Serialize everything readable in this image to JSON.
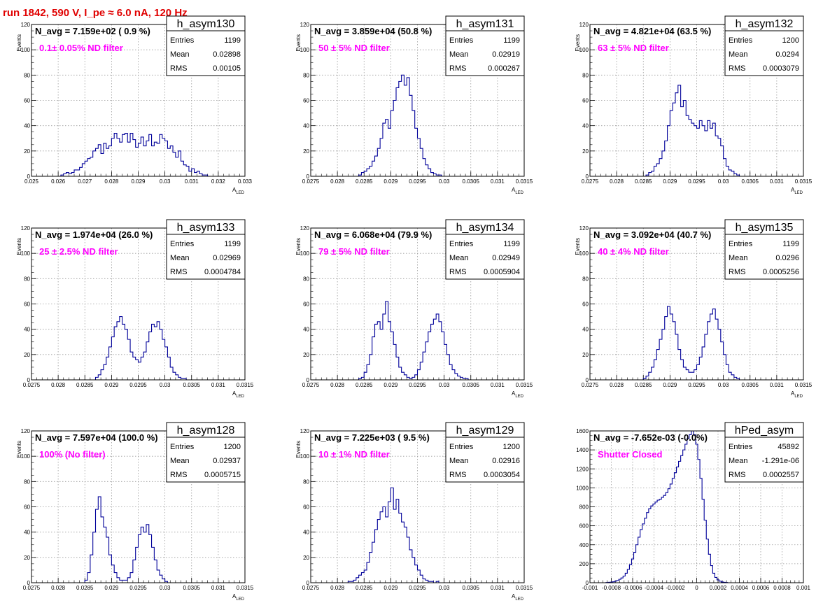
{
  "page": {
    "run_title": "run 1842,   590 V, I_pe ≈ 6.0 nA, 120 Hz"
  },
  "chart_data": [
    {
      "type": "histogram",
      "name": "h_asym130",
      "navg": "N_avg = 7.159e+02 ( 0.9 %)",
      "filter": "0.1± 0.05% ND filter",
      "stats": {
        "entries": "1199",
        "mean": "0.02898",
        "rms": "0.00105"
      },
      "xlim": [
        0.025,
        0.033
      ],
      "ylim": [
        0,
        120
      ],
      "xticks": [
        "0.025",
        "0.026",
        "0.027",
        "0.028",
        "0.029",
        "0.03",
        "0.031",
        "0.032",
        "0.033"
      ],
      "yticks": [
        "0",
        "20",
        "40",
        "60",
        "80",
        "100",
        "120"
      ],
      "xlabel": "A",
      "xlabel_sub": "LED",
      "ylabel": "Events",
      "bins": {
        "start": 0.0255,
        "width": 0.0001,
        "counts": [
          0,
          0,
          0,
          0,
          0,
          0,
          1,
          2,
          3,
          2,
          3,
          5,
          5,
          7,
          10,
          12,
          14,
          15,
          20,
          22,
          25,
          18,
          26,
          22,
          24,
          30,
          34,
          30,
          27,
          33,
          34,
          27,
          34,
          29,
          23,
          26,
          31,
          24,
          28,
          33,
          24,
          27,
          26,
          33,
          30,
          28,
          22,
          24,
          19,
          15,
          20,
          12,
          9,
          8,
          4,
          6,
          3,
          4,
          2,
          1,
          1,
          0,
          0,
          0,
          0,
          0
        ]
      }
    },
    {
      "type": "histogram",
      "name": "h_asym131",
      "navg": "N_avg = 3.859e+04 (50.8 %)",
      "filter": "50 ± 5% ND filter",
      "stats": {
        "entries": "1199",
        "mean": "0.02919",
        "rms": "0.000267"
      },
      "xlim": [
        0.0275,
        0.0315
      ],
      "ylim": [
        0,
        120
      ],
      "xticks": [
        "0.0275",
        "0.028",
        "0.0285",
        "0.029",
        "0.0295",
        "0.03",
        "0.0305",
        "0.031",
        "0.0315"
      ],
      "yticks": [
        "0",
        "20",
        "40",
        "60",
        "80",
        "100",
        "120"
      ],
      "xlabel": "A",
      "xlabel_sub": "LED",
      "ylabel": "Events",
      "bins": {
        "start": 0.0284,
        "width": 5e-05,
        "counts": [
          1,
          3,
          4,
          6,
          8,
          12,
          16,
          22,
          30,
          42,
          45,
          38,
          52,
          60,
          70,
          75,
          80,
          72,
          78,
          64,
          52,
          38,
          30,
          22,
          14,
          9,
          6,
          3,
          2,
          1,
          1
        ]
      }
    },
    {
      "type": "histogram",
      "name": "h_asym132",
      "navg": "N_avg = 4.821e+04 (63.5 %)",
      "filter": "63 ± 5% ND filter",
      "stats": {
        "entries": "1200",
        "mean": "0.0294",
        "rms": "0.0003079"
      },
      "xlim": [
        0.0275,
        0.0315
      ],
      "ylim": [
        0,
        120
      ],
      "xticks": [
        "0.0275",
        "0.028",
        "0.0285",
        "0.029",
        "0.0295",
        "0.03",
        "0.0305",
        "0.031",
        "0.0315"
      ],
      "yticks": [
        "0",
        "20",
        "40",
        "60",
        "80",
        "100",
        "120"
      ],
      "xlabel": "A",
      "xlabel_sub": "LED",
      "ylabel": "Events",
      "bins": {
        "start": 0.02855,
        "width": 5e-05,
        "counts": [
          1,
          3,
          4,
          8,
          10,
          14,
          20,
          28,
          40,
          52,
          58,
          66,
          72,
          55,
          60,
          48,
          45,
          42,
          40,
          38,
          44,
          40,
          36,
          44,
          38,
          42,
          32,
          30,
          24,
          14,
          8,
          5,
          4,
          2,
          1
        ]
      }
    },
    {
      "type": "histogram",
      "name": "h_asym133",
      "navg": "N_avg = 1.974e+04 (26.0 %)",
      "filter": "25 ± 2.5% ND filter",
      "stats": {
        "entries": "1199",
        "mean": "0.02969",
        "rms": "0.0004784"
      },
      "xlim": [
        0.0275,
        0.0315
      ],
      "ylim": [
        0,
        120
      ],
      "xticks": [
        "0.0275",
        "0.028",
        "0.0285",
        "0.029",
        "0.0295",
        "0.03",
        "0.0305",
        "0.031",
        "0.0315"
      ],
      "yticks": [
        "0",
        "20",
        "40",
        "60",
        "80",
        "100",
        "120"
      ],
      "xlabel": "A",
      "xlabel_sub": "LED",
      "ylabel": "Events",
      "bins": {
        "start": 0.0287,
        "width": 5e-05,
        "counts": [
          2,
          4,
          8,
          12,
          18,
          26,
          34,
          42,
          46,
          50,
          44,
          40,
          32,
          22,
          18,
          16,
          14,
          18,
          22,
          30,
          38,
          44,
          42,
          46,
          40,
          32,
          26,
          18,
          10,
          6,
          4,
          2,
          1,
          1
        ]
      }
    },
    {
      "type": "histogram",
      "name": "h_asym134",
      "navg": "N_avg = 6.068e+04 (79.9 %)",
      "filter": "79 ± 5% ND filter",
      "stats": {
        "entries": "1199",
        "mean": "0.02949",
        "rms": "0.0005904"
      },
      "xlim": [
        0.0275,
        0.0315
      ],
      "ylim": [
        0,
        120
      ],
      "xticks": [
        "0.0275",
        "0.028",
        "0.0285",
        "0.029",
        "0.0295",
        "0.03",
        "0.0305",
        "0.031",
        "0.0315"
      ],
      "yticks": [
        "0",
        "20",
        "40",
        "60",
        "80",
        "100",
        "120"
      ],
      "xlabel": "A",
      "xlabel_sub": "LED",
      "ylabel": "Events",
      "bins": {
        "start": 0.0284,
        "width": 5e-05,
        "counts": [
          1,
          2,
          6,
          12,
          20,
          34,
          44,
          46,
          40,
          52,
          62,
          46,
          38,
          28,
          18,
          10,
          6,
          4,
          2,
          1,
          2,
          4,
          8,
          14,
          22,
          30,
          38,
          44,
          48,
          52,
          46,
          38,
          28,
          20,
          12,
          8,
          5,
          3,
          2,
          1,
          1
        ]
      }
    },
    {
      "type": "histogram",
      "name": "h_asym135",
      "navg": "N_avg = 3.092e+04 (40.7 %)",
      "filter": "40 ± 4% ND filter",
      "stats": {
        "entries": "1199",
        "mean": "0.0296",
        "rms": "0.0005256"
      },
      "xlim": [
        0.0275,
        0.0315
      ],
      "ylim": [
        0,
        120
      ],
      "xticks": [
        "0.0275",
        "0.028",
        "0.0285",
        "0.029",
        "0.0295",
        "0.03",
        "0.0305",
        "0.031",
        "0.0315"
      ],
      "yticks": [
        "0",
        "20",
        "40",
        "60",
        "80",
        "100",
        "120"
      ],
      "xlabel": "A",
      "xlabel_sub": "LED",
      "ylabel": "Events",
      "bins": {
        "start": 0.0285,
        "width": 5e-05,
        "counts": [
          1,
          3,
          6,
          10,
          16,
          24,
          32,
          40,
          50,
          58,
          52,
          46,
          36,
          24,
          16,
          10,
          8,
          6,
          6,
          8,
          12,
          18,
          26,
          36,
          46,
          52,
          56,
          48,
          40,
          30,
          20,
          12,
          6,
          4,
          2,
          1
        ]
      }
    },
    {
      "type": "histogram",
      "name": "h_asym128",
      "navg": "N_avg = 7.597e+04 (100.0 %)",
      "filter": "100% (No filter)",
      "stats": {
        "entries": "1200",
        "mean": "0.02937",
        "rms": "0.0005715"
      },
      "xlim": [
        0.0275,
        0.0315
      ],
      "ylim": [
        0,
        120
      ],
      "xticks": [
        "0.0275",
        "0.028",
        "0.0285",
        "0.029",
        "0.0295",
        "0.03",
        "0.0305",
        "0.031",
        "0.0315"
      ],
      "yticks": [
        "0",
        "20",
        "40",
        "60",
        "80",
        "100",
        "120"
      ],
      "xlabel": "A",
      "xlabel_sub": "LED",
      "ylabel": "Events",
      "bins": {
        "start": 0.0285,
        "width": 5e-05,
        "counts": [
          2,
          8,
          22,
          40,
          58,
          68,
          52,
          44,
          36,
          22,
          14,
          8,
          4,
          2,
          2,
          2,
          4,
          8,
          18,
          28,
          38,
          44,
          40,
          46,
          38,
          28,
          18,
          10,
          6,
          3,
          1
        ]
      }
    },
    {
      "type": "histogram",
      "name": "h_asym129",
      "navg": "N_avg = 7.225e+03 ( 9.5 %)",
      "filter": "10 ± 1% ND filter",
      "stats": {
        "entries": "1200",
        "mean": "0.02916",
        "rms": "0.0003054"
      },
      "xlim": [
        0.0275,
        0.0315
      ],
      "ylim": [
        0,
        120
      ],
      "xticks": [
        "0.0275",
        "0.028",
        "0.0285",
        "0.029",
        "0.0295",
        "0.03",
        "0.0305",
        "0.031",
        "0.0315"
      ],
      "yticks": [
        "0",
        "20",
        "40",
        "60",
        "80",
        "100",
        "120"
      ],
      "xlabel": "A",
      "xlabel_sub": "LED",
      "ylabel": "Events",
      "bins": {
        "start": 0.0282,
        "width": 5e-05,
        "counts": [
          1,
          1,
          2,
          4,
          6,
          8,
          10,
          16,
          24,
          32,
          42,
          50,
          56,
          60,
          52,
          64,
          75,
          58,
          66,
          55,
          48,
          44,
          36,
          26,
          20,
          14,
          10,
          6,
          3,
          2,
          1,
          1,
          0,
          1
        ]
      }
    },
    {
      "type": "histogram",
      "name": "hPed_asym",
      "navg": "N_avg = -7.652e-03 (-0.0%)",
      "filter": "Shutter Closed",
      "stats": {
        "entries": "45892",
        "mean": "-1.291e-06",
        "rms": "0.0002557"
      },
      "xlim": [
        -0.001,
        0.001
      ],
      "ylim": [
        0,
        1600
      ],
      "xticks": [
        "-0.001",
        "-0.0008",
        "-0.0006",
        "-0.0004",
        "-0.0002",
        "0",
        "0.0002",
        "0.0004",
        "0.0006",
        "0.0008",
        "0.001"
      ],
      "yticks": [
        "0",
        "200",
        "400",
        "600",
        "800",
        "1000",
        "1200",
        "1400",
        "1600"
      ],
      "xlabel": "",
      "xlabel_sub": "",
      "ylabel": "",
      "bins": {
        "start": -0.00085,
        "width": 2e-05,
        "counts": [
          2,
          4,
          6,
          10,
          16,
          24,
          36,
          50,
          70,
          100,
          140,
          190,
          250,
          320,
          400,
          480,
          560,
          620,
          680,
          740,
          780,
          810,
          830,
          850,
          870,
          880,
          900,
          920,
          950,
          990,
          1040,
          1100,
          1160,
          1220,
          1280,
          1340,
          1400,
          1460,
          1520,
          1560,
          1600,
          1560,
          1460,
          1300,
          1100,
          880,
          660,
          460,
          300,
          180,
          100,
          56,
          30,
          16,
          8,
          4,
          2
        ]
      }
    }
  ]
}
